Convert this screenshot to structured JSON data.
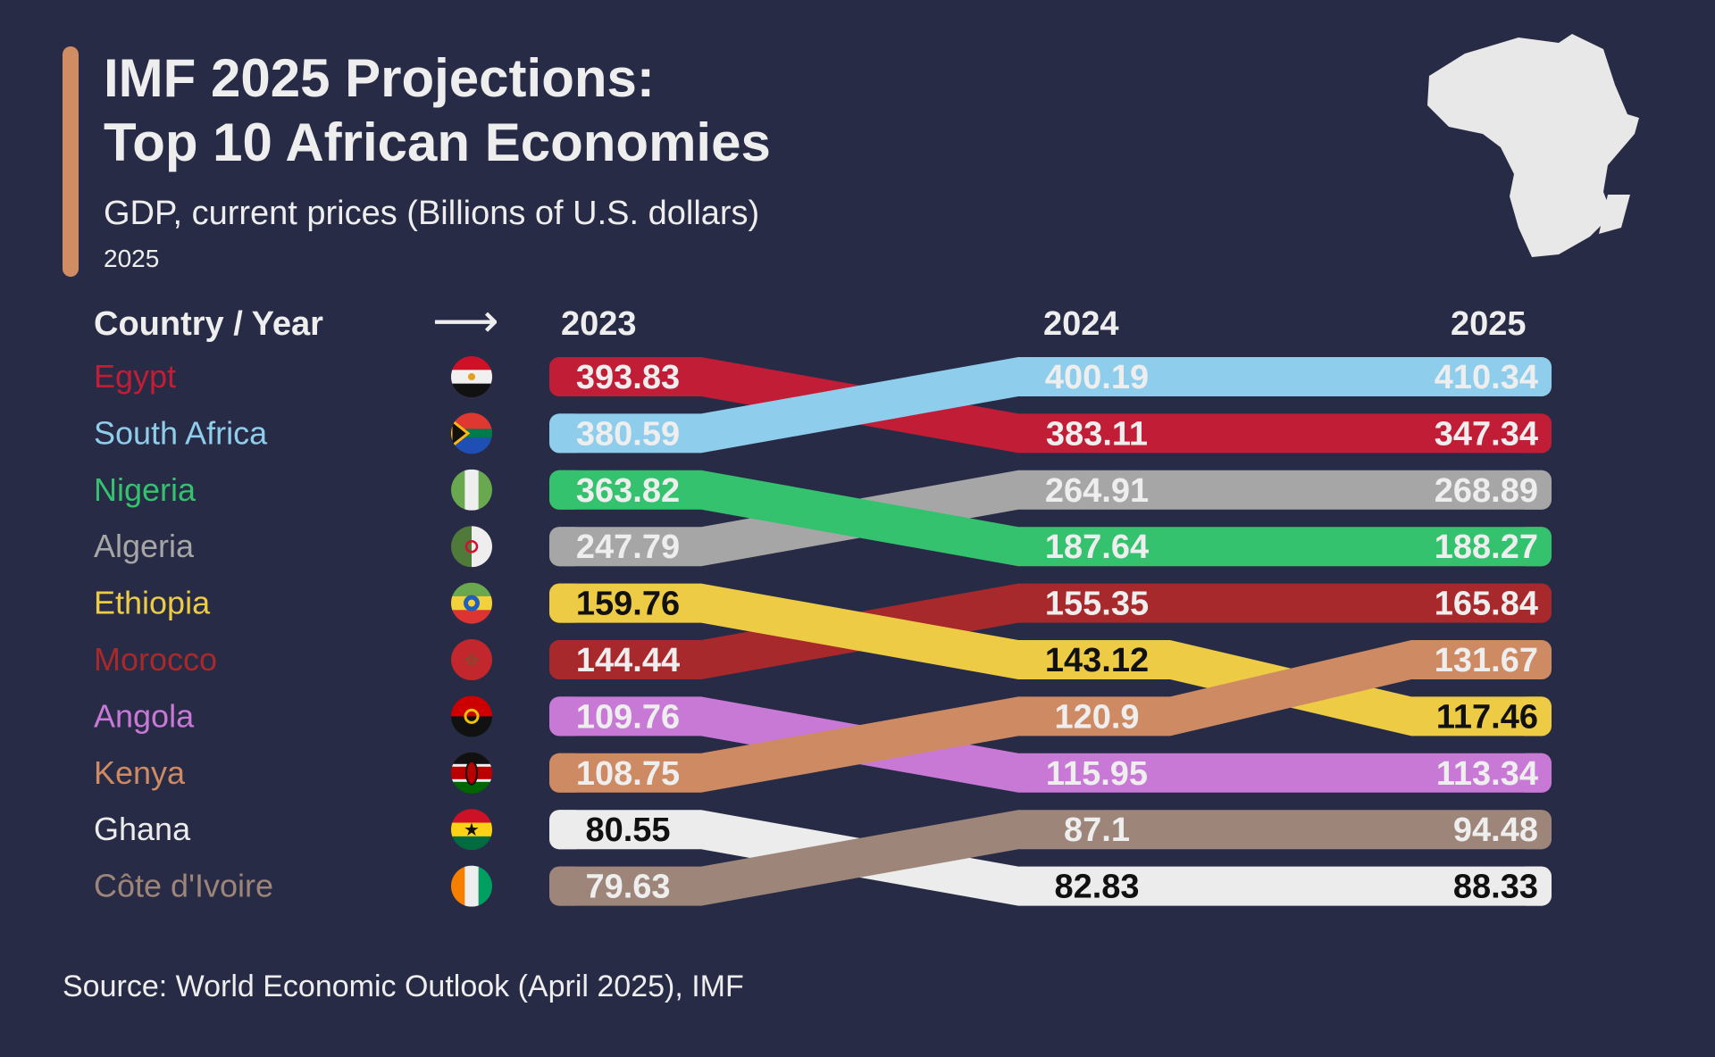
{
  "header": {
    "title_line1": "IMF 2025 Projections:",
    "title_line2": "Top 10 African Economies",
    "subtitle": "GDP, current prices (Billions of U.S. dollars)",
    "year": "2025",
    "accent_color": "#d08c63"
  },
  "table_header": {
    "country_year": "Country / Year",
    "arrow": "⟶"
  },
  "source": "Source: World Economic Outlook (April 2025), IMF",
  "chart_data": {
    "type": "table",
    "title": "IMF 2025 Projections: Top 10 African Economies",
    "subtitle": "GDP, current prices (Billions of U.S. dollars)",
    "years": [
      "2023",
      "2024",
      "2025"
    ],
    "series": [
      {
        "name": "Egypt",
        "flag": "egypt-flag",
        "color": "#c21d36",
        "text_color": "#eeeeee",
        "values": [
          "393.83",
          "383.11",
          "347.34"
        ]
      },
      {
        "name": "South Africa",
        "flag": "south-africa-flag",
        "color": "#8fcdec",
        "text_color": "#eeeeee",
        "values": [
          "380.59",
          "400.19",
          "410.34"
        ]
      },
      {
        "name": "Nigeria",
        "flag": "nigeria-flag",
        "color": "#35c26e",
        "text_color": "#eeeeee",
        "values": [
          "363.82",
          "187.64",
          "188.27"
        ]
      },
      {
        "name": "Algeria",
        "flag": "algeria-flag",
        "color": "#a6a6a6",
        "text_color": "#eeeeee",
        "values": [
          "247.79",
          "264.91",
          "268.89"
        ]
      },
      {
        "name": "Ethiopia",
        "flag": "ethiopia-flag",
        "color": "#edcb45",
        "text_color": "#111111",
        "values": [
          "159.76",
          "143.12",
          "117.46"
        ]
      },
      {
        "name": "Morocco",
        "flag": "morocco-flag",
        "color": "#a8292c",
        "text_color": "#eeeeee",
        "values": [
          "144.44",
          "155.35",
          "165.84"
        ]
      },
      {
        "name": "Angola",
        "flag": "angola-flag",
        "color": "#c879d6",
        "text_color": "#eeeeee",
        "values": [
          "109.76",
          "115.95",
          "113.34"
        ]
      },
      {
        "name": "Kenya",
        "flag": "kenya-flag",
        "color": "#cd8a63",
        "text_color": "#eeeeee",
        "values": [
          "108.75",
          "120.9",
          "131.67"
        ]
      },
      {
        "name": "Ghana",
        "flag": "ghana-flag",
        "color": "#ececec",
        "text_color": "#111111",
        "values": [
          "80.55",
          "82.83",
          "88.33"
        ]
      },
      {
        "name": "Côte d'Ivoire",
        "flag": "cote-divoire-flag",
        "color": "#9e8579",
        "text_color": "#eeeeee",
        "values": [
          "79.63",
          "87.1",
          "94.48"
        ]
      }
    ]
  }
}
